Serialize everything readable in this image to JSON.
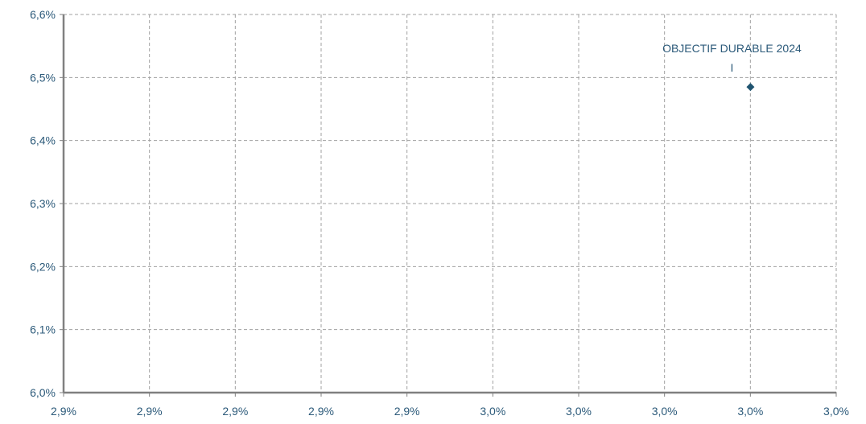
{
  "chart_data": {
    "type": "scatter",
    "title": "",
    "xlabel": "",
    "ylabel": "",
    "x_tick_labels": [
      "2,9%",
      "2,9%",
      "2,9%",
      "2,9%",
      "2,9%",
      "3,0%",
      "3,0%",
      "3,0%",
      "3,0%",
      "3,0%"
    ],
    "y_tick_labels": [
      "6,0%",
      "6,1%",
      "6,2%",
      "6,3%",
      "6,4%",
      "6,5%",
      "6,6%"
    ],
    "ylim": [
      6.0,
      6.6
    ],
    "x_tick_count": 10,
    "grid": true,
    "legend": "none",
    "points": [
      {
        "label": "OBJECTIF DURABLE 2024",
        "label_line2": "I",
        "x_position_fraction": 0.889,
        "y": 6.485
      }
    ],
    "colors": {
      "marker": "#1f5470",
      "text": "#2c5a7a",
      "grid": "#a0a0a0",
      "axis": "#808080"
    }
  }
}
